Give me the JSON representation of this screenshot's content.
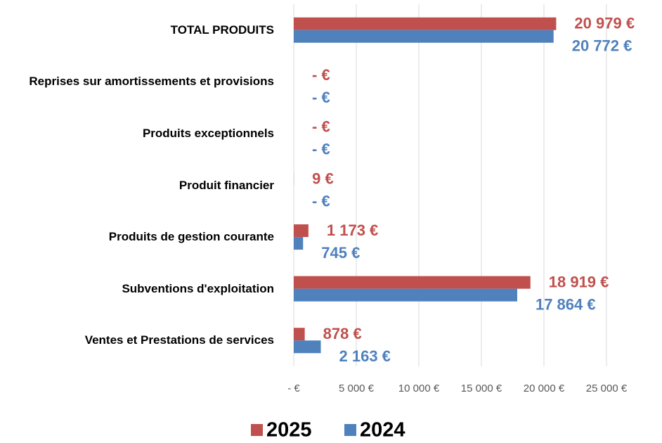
{
  "chart_data": {
    "type": "barh",
    "categories": [
      "Ventes et Prestations de services",
      "Subventions d'exploitation",
      "Produits de gestion courante",
      "Produit financier",
      "Produits exceptionnels",
      "Reprises sur amortissements et provisions",
      "TOTAL PRODUITS"
    ],
    "series": [
      {
        "name": "2025",
        "color": "#c0504d",
        "values": [
          878,
          18919,
          1173,
          9,
          0,
          0,
          20979
        ],
        "value_labels": [
          "878 €",
          "18 919 €",
          "1 173 €",
          "9 €",
          "-   €",
          "-   €",
          "20 979 €"
        ]
      },
      {
        "name": "2024",
        "color": "#4f81bd",
        "values": [
          2163,
          17864,
          745,
          0,
          0,
          0,
          20772
        ],
        "value_labels": [
          "2 163 €",
          "17 864 €",
          "745 €",
          "-   €",
          "-   €",
          "-   €",
          "20 772 €"
        ]
      }
    ],
    "xlim": [
      0,
      25000
    ],
    "xticks": [
      {
        "value": 0,
        "label": "-   €"
      },
      {
        "value": 5000,
        "label": "5 000 €"
      },
      {
        "value": 10000,
        "label": "10 000 €"
      },
      {
        "value": 15000,
        "label": "15 000 €"
      },
      {
        "value": 20000,
        "label": "20 000 €"
      },
      {
        "value": 25000,
        "label": "25 000 €"
      }
    ],
    "grid": true,
    "legend": "bottom"
  }
}
